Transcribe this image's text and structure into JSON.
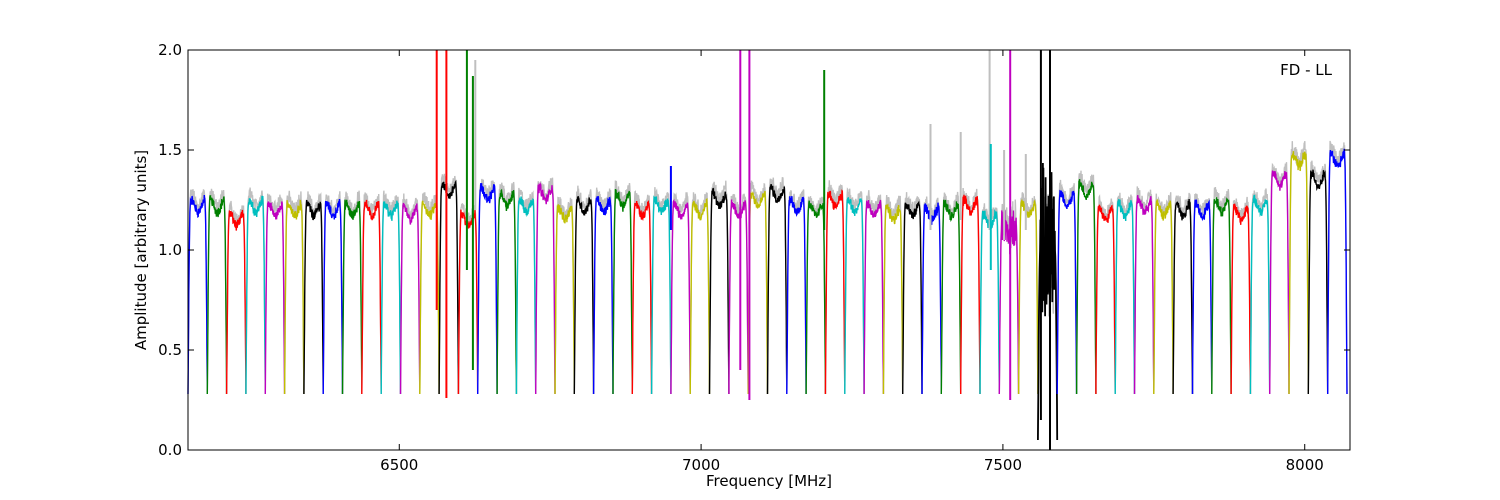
{
  "chart_data": {
    "type": "line",
    "title": "",
    "annotation": "FD - LL",
    "xlabel": "Frequency [MHz]",
    "ylabel": "Amplitude [arbitrary units]",
    "xlim": [
      6150,
      8075
    ],
    "ylim": [
      0.0,
      2.0
    ],
    "x_ticks": [
      6500,
      7000,
      7500,
      8000
    ],
    "x_tick_labels": [
      "6500",
      "7000",
      "7500",
      "8000"
    ],
    "y_ticks": [
      0.0,
      0.5,
      1.0,
      1.5,
      2.0
    ],
    "y_tick_labels": [
      "0.0",
      "0.5",
      "1.0",
      "1.5",
      "2.0"
    ],
    "grid": false,
    "channel_width_mhz": 32,
    "color_cycle": [
      "#0000ff",
      "#008000",
      "#ff0000",
      "#00bfbf",
      "#bf00bf",
      "#bfbf00",
      "#000000"
    ],
    "background_color": "#bfbfbf",
    "channels": [
      {
        "start": 6150,
        "level": 1.22,
        "color": "#0000ff"
      },
      {
        "start": 6182,
        "level": 1.22,
        "color": "#008000"
      },
      {
        "start": 6214,
        "level": 1.15,
        "color": "#ff0000"
      },
      {
        "start": 6246,
        "level": 1.22,
        "color": "#00bfbf"
      },
      {
        "start": 6278,
        "level": 1.2,
        "color": "#bf00bf"
      },
      {
        "start": 6310,
        "level": 1.2,
        "color": "#bfbf00"
      },
      {
        "start": 6342,
        "level": 1.2,
        "color": "#000000"
      },
      {
        "start": 6374,
        "level": 1.2,
        "color": "#0000ff"
      },
      {
        "start": 6406,
        "level": 1.2,
        "color": "#008000"
      },
      {
        "start": 6438,
        "level": 1.2,
        "color": "#ff0000"
      },
      {
        "start": 6470,
        "level": 1.2,
        "color": "#00bfbf"
      },
      {
        "start": 6502,
        "level": 1.18,
        "color": "#bf00bf"
      },
      {
        "start": 6534,
        "level": 1.2,
        "color": "#bfbf00"
      },
      {
        "start": 6566,
        "level": 1.3,
        "color": "#000000"
      },
      {
        "start": 6598,
        "level": 1.15,
        "color": "#ff0000"
      },
      {
        "start": 6630,
        "level": 1.28,
        "color": "#0000ff"
      },
      {
        "start": 6662,
        "level": 1.25,
        "color": "#008000"
      },
      {
        "start": 6694,
        "level": 1.22,
        "color": "#00bfbf"
      },
      {
        "start": 6726,
        "level": 1.28,
        "color": "#bf00bf"
      },
      {
        "start": 6758,
        "level": 1.18,
        "color": "#bfbf00"
      },
      {
        "start": 6790,
        "level": 1.22,
        "color": "#000000"
      },
      {
        "start": 6822,
        "level": 1.22,
        "color": "#0000ff"
      },
      {
        "start": 6854,
        "level": 1.25,
        "color": "#008000"
      },
      {
        "start": 6886,
        "level": 1.2,
        "color": "#ff0000"
      },
      {
        "start": 6918,
        "level": 1.22,
        "color": "#00bfbf"
      },
      {
        "start": 6950,
        "level": 1.2,
        "color": "#bf00bf"
      },
      {
        "start": 6982,
        "level": 1.2,
        "color": "#bfbf00"
      },
      {
        "start": 7014,
        "level": 1.25,
        "color": "#000000"
      },
      {
        "start": 7046,
        "level": 1.2,
        "color": "#bf00bf"
      },
      {
        "start": 7078,
        "level": 1.25,
        "color": "#bfbf00"
      },
      {
        "start": 7110,
        "level": 1.28,
        "color": "#000000"
      },
      {
        "start": 7142,
        "level": 1.22,
        "color": "#0000ff"
      },
      {
        "start": 7174,
        "level": 1.2,
        "color": "#008000"
      },
      {
        "start": 7206,
        "level": 1.25,
        "color": "#ff0000"
      },
      {
        "start": 7238,
        "level": 1.22,
        "color": "#00bfbf"
      },
      {
        "start": 7270,
        "level": 1.2,
        "color": "#bf00bf"
      },
      {
        "start": 7302,
        "level": 1.18,
        "color": "#bfbf00"
      },
      {
        "start": 7334,
        "level": 1.2,
        "color": "#000000"
      },
      {
        "start": 7366,
        "level": 1.18,
        "color": "#0000ff"
      },
      {
        "start": 7398,
        "level": 1.2,
        "color": "#008000"
      },
      {
        "start": 7430,
        "level": 1.22,
        "color": "#ff0000"
      },
      {
        "start": 7462,
        "level": 1.15,
        "color": "#00bfbf"
      },
      {
        "start": 7494,
        "level": 1.1,
        "color": "#bf00bf"
      },
      {
        "start": 7526,
        "level": 1.2,
        "color": "#bfbf00"
      },
      {
        "start": 7558,
        "level": 1.0,
        "color": "#000000"
      },
      {
        "start": 7590,
        "level": 1.25,
        "color": "#0000ff"
      },
      {
        "start": 7622,
        "level": 1.3,
        "color": "#008000"
      },
      {
        "start": 7654,
        "level": 1.18,
        "color": "#ff0000"
      },
      {
        "start": 7686,
        "level": 1.2,
        "color": "#00bfbf"
      },
      {
        "start": 7718,
        "level": 1.22,
        "color": "#bf00bf"
      },
      {
        "start": 7750,
        "level": 1.2,
        "color": "#bfbf00"
      },
      {
        "start": 7782,
        "level": 1.2,
        "color": "#000000"
      },
      {
        "start": 7814,
        "level": 1.2,
        "color": "#0000ff"
      },
      {
        "start": 7846,
        "level": 1.22,
        "color": "#008000"
      },
      {
        "start": 7878,
        "level": 1.18,
        "color": "#ff0000"
      },
      {
        "start": 7910,
        "level": 1.22,
        "color": "#00bfbf"
      },
      {
        "start": 7942,
        "level": 1.35,
        "color": "#bf00bf"
      },
      {
        "start": 7974,
        "level": 1.45,
        "color": "#bfbf00"
      },
      {
        "start": 8006,
        "level": 1.35,
        "color": "#000000"
      },
      {
        "start": 8038,
        "level": 1.45,
        "color": "#0000ff"
      }
    ],
    "spikes": [
      {
        "x": 6562,
        "y_low": 0.7,
        "y_high": 2.0,
        "color": "#ff0000"
      },
      {
        "x": 6578,
        "y_low": 0.26,
        "y_high": 2.0,
        "color": "#ff0000"
      },
      {
        "x": 6612,
        "y_low": 0.9,
        "y_high": 2.0,
        "color": "#008000"
      },
      {
        "x": 6622,
        "y_low": 0.4,
        "y_high": 1.87,
        "color": "#008000"
      },
      {
        "x": 6626,
        "y_low": 1.2,
        "y_high": 1.95,
        "color": "#bfbfbf"
      },
      {
        "x": 6950,
        "y_low": 1.1,
        "y_high": 1.42,
        "color": "#0000ff"
      },
      {
        "x": 7065,
        "y_low": 0.4,
        "y_high": 2.0,
        "color": "#bf00bf"
      },
      {
        "x": 7080,
        "y_low": 0.25,
        "y_high": 2.0,
        "color": "#bf00bf"
      },
      {
        "x": 7204,
        "y_low": 1.1,
        "y_high": 1.9,
        "color": "#008000"
      },
      {
        "x": 7380,
        "y_low": 1.1,
        "y_high": 1.63,
        "color": "#bfbfbf"
      },
      {
        "x": 7430,
        "y_low": 1.15,
        "y_high": 1.59,
        "color": "#bfbfbf"
      },
      {
        "x": 7478,
        "y_low": 1.1,
        "y_high": 2.0,
        "color": "#bfbfbf"
      },
      {
        "x": 7480,
        "y_low": 0.9,
        "y_high": 1.53,
        "color": "#00bfbf"
      },
      {
        "x": 7502,
        "y_low": 1.05,
        "y_high": 1.5,
        "color": "#bfbfbf"
      },
      {
        "x": 7512,
        "y_low": 0.25,
        "y_high": 2.0,
        "color": "#bf00bf"
      },
      {
        "x": 7538,
        "y_low": 1.1,
        "y_high": 1.48,
        "color": "#bfbfbf"
      },
      {
        "x": 7563,
        "y_low": 0.15,
        "y_high": 2.0,
        "color": "#000000"
      },
      {
        "x": 7578,
        "y_low": 0.0,
        "y_high": 2.0,
        "color": "#000000"
      }
    ]
  }
}
